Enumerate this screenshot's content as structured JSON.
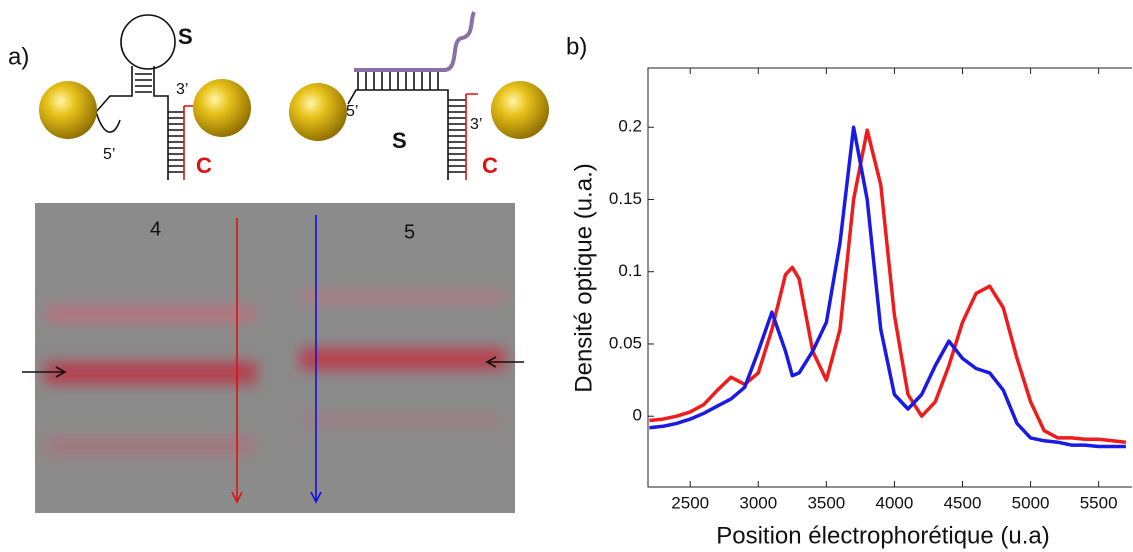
{
  "panel_a": {
    "label": "a)",
    "left_construct": {
      "strand_s": "S",
      "end_3": "3’",
      "end_5": "5’",
      "strand_c": "C"
    },
    "right_construct": {
      "strand_s": "S",
      "end_5": "5’",
      "end_3": "3’",
      "strand_c": "C"
    },
    "gel": {
      "lanes": [
        "4",
        "5"
      ]
    }
  },
  "chart_data": {
    "type": "line",
    "panel_label": "b)",
    "x_label": "Position électrophorétique (u.a)",
    "y_label": "Densité optique (u.a.)",
    "x": [
      2200,
      2300,
      2400,
      2500,
      2600,
      2700,
      2800,
      2900,
      3000,
      3100,
      3200,
      3250,
      3300,
      3400,
      3500,
      3600,
      3700,
      3800,
      3900,
      4000,
      4100,
      4200,
      4300,
      4400,
      4500,
      4600,
      4700,
      4800,
      4900,
      5000,
      5100,
      5200,
      5300,
      5400,
      5500,
      5600,
      5700
    ],
    "series": [
      {
        "color": "#ee1c1c",
        "values": [
          -0.003,
          -0.002,
          0,
          0.003,
          0.008,
          0.018,
          0.027,
          0.022,
          0.03,
          0.06,
          0.098,
          0.103,
          0.095,
          0.045,
          0.025,
          0.06,
          0.15,
          0.198,
          0.16,
          0.07,
          0.015,
          0,
          0.01,
          0.035,
          0.065,
          0.085,
          0.09,
          0.075,
          0.04,
          0.01,
          -0.01,
          -0.015,
          -0.015,
          -0.016,
          -0.016,
          -0.017,
          -0.018
        ]
      },
      {
        "color": "#1a1ae6",
        "values": [
          -0.008,
          -0.007,
          -0.005,
          -0.002,
          0.002,
          0.007,
          0.012,
          0.02,
          0.045,
          0.072,
          0.045,
          0.028,
          0.03,
          0.045,
          0.065,
          0.12,
          0.2,
          0.15,
          0.06,
          0.015,
          0.005,
          0.015,
          0.035,
          0.052,
          0.04,
          0.033,
          0.03,
          0.018,
          -0.005,
          -0.015,
          -0.017,
          -0.018,
          -0.02,
          -0.02,
          -0.021,
          -0.021,
          -0.021
        ]
      }
    ],
    "xlim": [
      2190,
      5745
    ],
    "ylim": [
      -0.049,
      0.241
    ],
    "xticks": [
      2500,
      3000,
      3500,
      4000,
      4500,
      5000,
      5500
    ],
    "yticks": [
      0,
      0.05,
      0.1,
      0.15,
      0.2
    ],
    "grid": false
  }
}
